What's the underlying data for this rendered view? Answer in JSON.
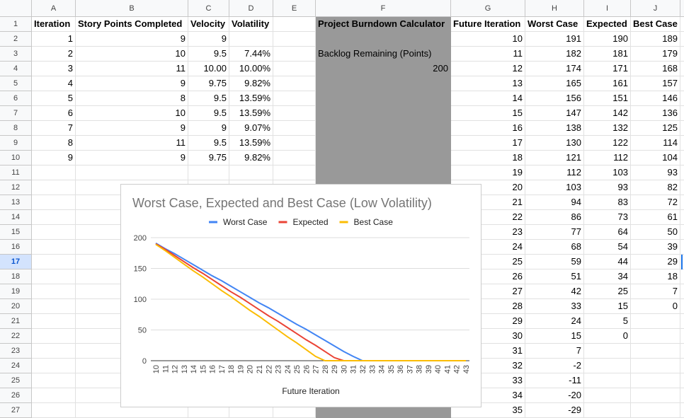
{
  "sheet": {
    "columns": [
      "A",
      "B",
      "C",
      "D",
      "E",
      "F",
      "G",
      "H",
      "I",
      "J"
    ],
    "row_numbers": [
      1,
      2,
      3,
      4,
      5,
      6,
      7,
      8,
      9,
      10,
      11,
      12,
      13,
      14,
      15,
      16,
      17,
      18,
      19,
      20,
      21,
      22,
      23,
      24,
      25,
      26,
      27
    ],
    "selected_row": 17,
    "rows": [
      [
        "Iteration",
        "Story Points Completed",
        "Velocity",
        "Volatility",
        null,
        "Project Burndown Calculator",
        "Future Iteration",
        "Worst Case",
        "Expected",
        "Best Case"
      ],
      [
        "1",
        "9",
        "9",
        null,
        null,
        null,
        "10",
        "191",
        "190",
        "189"
      ],
      [
        "2",
        "10",
        "9.5",
        "7.44%",
        null,
        "Backlog Remaining (Points)",
        "11",
        "182",
        "181",
        "179"
      ],
      [
        "3",
        "11",
        "10.00",
        "10.00%",
        null,
        "200",
        "12",
        "174",
        "171",
        "168"
      ],
      [
        "4",
        "9",
        "9.75",
        "9.82%",
        null,
        null,
        "13",
        "165",
        "161",
        "157"
      ],
      [
        "5",
        "8",
        "9.5",
        "13.59%",
        null,
        null,
        "14",
        "156",
        "151",
        "146"
      ],
      [
        "6",
        "10",
        "9.5",
        "13.59%",
        null,
        null,
        "15",
        "147",
        "142",
        "136"
      ],
      [
        "7",
        "9",
        "9",
        "9.07%",
        null,
        null,
        "16",
        "138",
        "132",
        "125"
      ],
      [
        "8",
        "11",
        "9.5",
        "13.59%",
        null,
        null,
        "17",
        "130",
        "122",
        "114"
      ],
      [
        "9",
        "9",
        "9.75",
        "9.82%",
        null,
        null,
        "18",
        "121",
        "112",
        "104"
      ],
      [
        null,
        null,
        null,
        null,
        null,
        null,
        "19",
        "112",
        "103",
        "93"
      ],
      [
        null,
        null,
        null,
        null,
        null,
        null,
        "20",
        "103",
        "93",
        "82"
      ],
      [
        null,
        null,
        null,
        null,
        null,
        null,
        "21",
        "94",
        "83",
        "72"
      ],
      [
        null,
        null,
        null,
        null,
        null,
        null,
        "22",
        "86",
        "73",
        "61"
      ],
      [
        null,
        null,
        null,
        null,
        null,
        null,
        "23",
        "77",
        "64",
        "50"
      ],
      [
        null,
        null,
        null,
        null,
        null,
        null,
        "24",
        "68",
        "54",
        "39"
      ],
      [
        null,
        null,
        null,
        null,
        null,
        null,
        "25",
        "59",
        "44",
        "29"
      ],
      [
        null,
        null,
        null,
        null,
        null,
        null,
        "26",
        "51",
        "34",
        "18"
      ],
      [
        null,
        null,
        null,
        null,
        null,
        null,
        "27",
        "42",
        "25",
        "7"
      ],
      [
        null,
        null,
        null,
        null,
        null,
        null,
        "28",
        "33",
        "15",
        "0"
      ],
      [
        null,
        null,
        null,
        null,
        null,
        null,
        "29",
        "24",
        "5",
        null
      ],
      [
        null,
        null,
        null,
        null,
        null,
        null,
        "30",
        "15",
        "0",
        null
      ],
      [
        null,
        null,
        null,
        null,
        null,
        null,
        "31",
        "7",
        null,
        null
      ],
      [
        null,
        null,
        null,
        null,
        null,
        null,
        "32",
        "-2",
        null,
        null
      ],
      [
        null,
        null,
        null,
        null,
        null,
        null,
        "33",
        "-11",
        null,
        null
      ],
      [
        null,
        null,
        null,
        null,
        null,
        null,
        "34",
        "-20",
        null,
        null
      ],
      [
        null,
        null,
        null,
        null,
        null,
        null,
        "35",
        "-29",
        null,
        null
      ]
    ]
  },
  "chart_data": {
    "type": "line",
    "title": "Worst Case, Expected and Best Case (Low Volatility)",
    "x_label": "Future Iteration",
    "categories": [
      10,
      11,
      12,
      13,
      14,
      15,
      16,
      17,
      18,
      19,
      20,
      21,
      22,
      23,
      24,
      25,
      26,
      27,
      28,
      29,
      30,
      31,
      32,
      33,
      34,
      35,
      36,
      37,
      38,
      39,
      40,
      41,
      42,
      43
    ],
    "ylim": [
      0,
      200
    ],
    "yticks": [
      0,
      50,
      100,
      150,
      200
    ],
    "grid": true,
    "legend": "top",
    "series": [
      {
        "name": "Worst Case",
        "color": "#4285f4",
        "values": [
          191,
          182,
          174,
          165,
          156,
          147,
          138,
          130,
          121,
          112,
          103,
          94,
          86,
          77,
          68,
          59,
          51,
          42,
          33,
          24,
          15,
          7,
          0,
          0,
          0,
          0,
          0,
          0,
          0,
          0,
          0,
          0,
          0,
          0
        ]
      },
      {
        "name": "Expected",
        "color": "#ea4335",
        "values": [
          190,
          181,
          171,
          161,
          151,
          142,
          132,
          122,
          112,
          103,
          93,
          83,
          73,
          64,
          54,
          44,
          34,
          25,
          15,
          5,
          0,
          0,
          0,
          0,
          0,
          0,
          0,
          0,
          0,
          0,
          0,
          0,
          0,
          0
        ]
      },
      {
        "name": "Best Case",
        "color": "#fbbc04",
        "values": [
          189,
          179,
          168,
          157,
          146,
          136,
          125,
          114,
          104,
          93,
          82,
          72,
          61,
          50,
          39,
          29,
          18,
          7,
          0,
          0,
          0,
          0,
          0,
          0,
          0,
          0,
          0,
          0,
          0,
          0,
          0,
          0,
          0,
          0
        ]
      }
    ]
  }
}
